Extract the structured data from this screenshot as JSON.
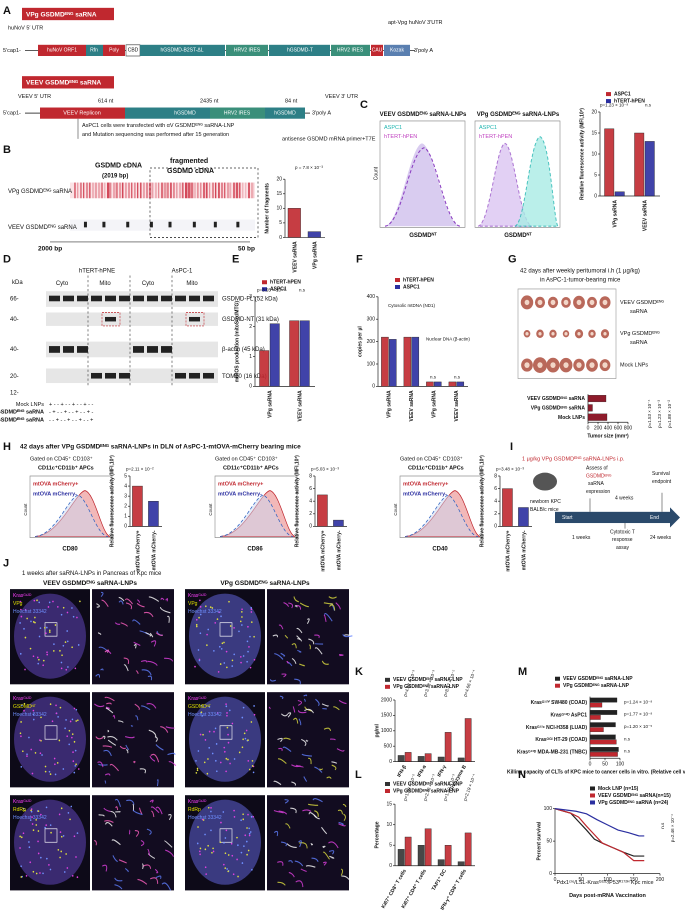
{
  "texts": [
    "A",
    "VPg GSDMDᴱᴺᴳ saRNA",
    "huNoV 5′ UTR",
    "apt-Vpg huNoV 3′UTR",
    "5′cap1-",
    "huNoV ORF1",
    "Rfn",
    "Poly",
    "CBD",
    "hGSDMD-B2ST-ΔL",
    "HRV2 IRES",
    "hGSDMD-T",
    "HRV2 IRES",
    "CAU",
    "Kozak",
    "3′poly A",
    "VEEV GSDMDᴱᴺᴳ saRNA",
    "VEEV 5′ UTR",
    "614 nt",
    "2435 nt",
    "84 nt",
    "VEEV 3′ UTR",
    "5′cap1-",
    "VEEV Replicon",
    "hGSDMD",
    "HRV2 IRES",
    "hGSDMD",
    "3′poly A",
    "AsPC1 cells were transfected with αV GSDMDᴱᴺᴳ saRNA-LNP",
    "and Mutation sequencing was performed after 15 generation",
    "antisense GSDMD mRNA primer+T7E",
    "B",
    "GSDMD cDNA",
    "(2019 bp)",
    "fragmented",
    "GSDMD cDNA",
    "VPg GSDMDᴱᴺᴳ saRNA",
    "VEEV GSDMDᴱᴺᴳ saRNA",
    "2000 bp",
    "50 bp",
    "C",
    "VEEV GSDMDᴱᴺᴳ saRNA-LNPs",
    "VPg GSDMDᴱᴺᴳ saRNA-LNPs",
    "ASPC1",
    "hTERT-hPEN",
    "ASPC1",
    "hTERT-hPEN",
    "Count",
    "GSDMDᴺᵀ",
    "GSDMDᴺᵀ",
    "D",
    "hTERT-hPNE",
    "AsPC-1",
    "Cyto",
    "Mito",
    "Cyto",
    "Mito",
    "kDa",
    "66-",
    "40-",
    "40-",
    "20-",
    "12-",
    "GSDMD-FL (52 kDa)",
    "GSDMD-NT (31 kDa)",
    "β-actin (45 kDa)",
    "TOM20 (16 kDa)",
    "Mock LNPs",
    "VEEV GSDMDᴱᴺᴳ saRNA",
    "VPg GSDMDᴱᴺᴳ saRNA",
    "+  -  -  +  -  -  +  -  -  +  -  -",
    "-  +  -  -  +  -  -  +  -  -  +  -",
    "-  -  +  -  -  +  -  -  +  -  -  +",
    "E",
    "F",
    "G",
    "42 days after weekly  peritumoral i.h (1 µg/kg)",
    "in AsPC-1-tumor-bearing mice",
    "VEEV GSDMDᴱᴺᴳ",
    "saRNA",
    "VPg GSDMDᴱᴺᴳ",
    "saRNA",
    "Mock LNPs",
    "H",
    "42 days after VPg GSDMDᴱᴺᴳ saRNA-LNPs in  DLN of AsPC-1-mtOVA-mCherry bearing mice",
    "Gated on CD45⁺ CD103⁺",
    "Gated on CD45⁺ CD103⁺",
    "Gated on CD45⁺ CD103⁺",
    "CD11c⁺CD11b⁺ APCs",
    "CD11c⁺CD11b⁺ APCs",
    "CD11c⁺CD11b⁺ APCs",
    "mtOVA mCherry+",
    "mtOVA mCherry-",
    "mtOVA mCherry+",
    "mtOVA mCherry-",
    "mtOVA mCherry+",
    "mtOVA mCherry-",
    "CD80",
    "CD86",
    "CD40",
    "Count",
    "Count",
    "Count",
    "I",
    "1 μg/kg VPg GSDMDᴱᴺᴳ saRNA-LNPs i.p.",
    "Assess of",
    "GSDMDᴱᴺᴳ",
    "saRNA",
    "expression",
    "4 weeks",
    "Survival",
    "endpoint",
    "newborn KPC",
    "BALB/c mice",
    "Start",
    "End",
    "1 weeks",
    "Cytotoxic T",
    "response",
    "assay",
    "24 weeks",
    "J",
    "1 weeks  after saRNA-LNPs in  Pancreas of Kpc mice",
    "VEEV GSDMDᴱᴺᴳ saRNA-LNPs",
    "VPg GSDMDᴱᴺᴳ saRNA-LNPs",
    "Krasᴳ¹²ᴰ",
    "VPg",
    "Hoechst 33342",
    "Krasᴳ¹²ᴰ",
    "GSDMDᴺᵀ",
    "Hoechst 33342",
    "Krasᴳ¹²ᴰ",
    "RdRp",
    "Hoechst 33342",
    "Krasᴳ¹²ᴰ",
    "VPg",
    "Hoechst 33342",
    "Krasᴳ¹²ᴰ",
    "GSDMDᴺᵀ",
    "Hoechst 33342",
    "Krasᴳ¹²ᴰ",
    "RdRp",
    "Hoechst 33342",
    "K",
    "L",
    "M",
    "N",
    "Pdx1ᶜʳᵉ/LSL-Krasᴳ¹²ᴰ/P53ᴿ¹⁷²ᴴ  Kpc mice"
  ],
  "chart_data": [
    {
      "type": "bar",
      "ylabel": "Number of fragments",
      "categories": [
        "VEEV saRNA",
        "VPg saRNA"
      ],
      "values": [
        10,
        2
      ],
      "colors": [
        "#c0282f",
        "#2b2fa0"
      ],
      "ylim": [
        0,
        20
      ],
      "yticks": [
        0,
        5,
        10,
        15,
        20
      ],
      "annotations": [
        "p = 7.8 × 10⁻³"
      ]
    },
    {
      "type": "bar",
      "ylabel": "Relative fluorescence activity (MFI,10³)",
      "categories": [
        "VPg saRNA",
        "VEEV saRNA"
      ],
      "series": [
        {
          "name": "ASPC1",
          "color": "#c0282f",
          "values": [
            16,
            15
          ]
        },
        {
          "name": "hTERT-hPEN",
          "color": "#2b2fa0",
          "values": [
            1,
            13
          ]
        }
      ],
      "ylim": [
        0,
        20
      ],
      "yticks": [
        0,
        5,
        10,
        15,
        20
      ],
      "annotations": [
        "p=1.23 × 10⁻⁸",
        "n.s"
      ]
    },
    {
      "type": "bar",
      "ylabel": "mtROS production (mitoSox/MTG)",
      "categories": [
        "VPg saRNA",
        "VEEV saRNA"
      ],
      "series": [
        {
          "name": "hTERT-hPEN",
          "color": "#c0282f",
          "values": [
            1.2,
            2.2
          ]
        },
        {
          "name": "ASPC1",
          "color": "#2b2fa0",
          "values": [
            2.1,
            2.2
          ]
        }
      ],
      "ylim": [
        0,
        3
      ],
      "yticks": [
        0,
        1,
        2,
        3
      ],
      "annotations": [
        "p=3.55 × 10⁻³",
        "n.s"
      ]
    },
    {
      "type": "bar",
      "ylabel": "copies per µl",
      "categories": [
        "VPg saRNA",
        "VEEV saRNA",
        "VPg saRNA",
        "VEEV saRNA"
      ],
      "series": [
        {
          "name": "hTERT-hPEN",
          "color": "#c0282f",
          "values": [
            220,
            220,
            20,
            20
          ]
        },
        {
          "name": "ASPC1",
          "color": "#2b2fa0",
          "values": [
            210,
            220,
            20,
            20
          ]
        }
      ],
      "ylim": [
        0,
        400
      ],
      "yticks": [
        0,
        100,
        200,
        300,
        400
      ],
      "annotations": [
        "Cytosolic mtDNA (ND1)",
        "Nuclear DNA (β-actin)",
        "n.s",
        "n.s"
      ]
    },
    {
      "type": "hbar",
      "xlabel": "Tumor size (mm³)",
      "categories": [
        "VEEV GSDMDᴱᴺᴳ saRNA",
        "VPg GSDMDᴱᴺᴳ saRNA",
        "Mock LNPs"
      ],
      "values": [
        360,
        90,
        380
      ],
      "colors": [
        "#8e1b2b",
        "#8e1b2b",
        "#8e1b2b"
      ],
      "xlim": [
        0,
        800
      ],
      "xticks": [
        0,
        200,
        400,
        600,
        800
      ],
      "annotations": [
        "p=1.53 × 10⁻⁴",
        "p=1.23 × 10⁻³",
        "p=1.88 × 10⁻²"
      ]
    },
    {
      "type": "bar",
      "ylabel": "Relative fluorescence activity (MFI,10³)",
      "categories": [
        "mtOVA mCherry+",
        "mtOVA mCherry-"
      ],
      "values": [
        4,
        2.5
      ],
      "colors": [
        "#c0282f",
        "#2b2fa0"
      ],
      "ylim": [
        0,
        5
      ],
      "yticks": [
        0,
        1,
        2,
        3,
        4,
        5
      ],
      "annotations": [
        "p=2.11 × 10⁻²"
      ]
    },
    {
      "type": "bar",
      "ylabel": "Relative fluorescence activity (MFI,10³)",
      "categories": [
        "mtOVA mCherry+",
        "mtOVA mCherry-"
      ],
      "values": [
        5,
        1
      ],
      "colors": [
        "#c0282f",
        "#2b2fa0"
      ],
      "ylim": [
        0,
        8
      ],
      "yticks": [
        0,
        2,
        4,
        6,
        8
      ],
      "annotations": [
        "p=5.03 × 10⁻³"
      ]
    },
    {
      "type": "bar",
      "ylabel": "Relative fluorescence activity (MFI,10³)",
      "categories": [
        "mtOVA mCherry+",
        "mtOVA mCherry-"
      ],
      "values": [
        6,
        3
      ],
      "colors": [
        "#c0282f",
        "#2b2fa0"
      ],
      "ylim": [
        0,
        8
      ],
      "yticks": [
        0,
        2,
        4,
        6,
        8
      ],
      "annotations": [
        "p=3.48 × 10⁻³"
      ]
    },
    {
      "type": "bar",
      "ylabel": "pg/ml",
      "categories": [
        "IFN-β",
        "IFN-α",
        "IFN-γ",
        "Granzyme B"
      ],
      "series": [
        {
          "name": "VEEV GSDMDᴱᴺᴳ saRNA-LNP",
          "color": "#333333",
          "values": [
            200,
            170,
            150,
            120
          ]
        },
        {
          "name": "VPg GSDMDᴱᴺᴳ saRNA-LNP",
          "color": "#c0282f",
          "values": [
            300,
            260,
            950,
            1400
          ]
        }
      ],
      "ylim": [
        0,
        2000
      ],
      "yticks": [
        0,
        500,
        1000,
        1500,
        2000
      ],
      "annotations": [
        "p=4.02 × 10⁻³",
        "p=3.18 × 10⁻³",
        "p=8.07 × 10⁻⁵",
        "p=4.66 × 10⁻⁴"
      ]
    },
    {
      "type": "bar",
      "ylabel": "Percentage",
      "categories": [
        "Ki67⁺ CD8⁺ T cells",
        "Ki67⁺ CD4⁺ T cells",
        "TAP1⁺ DC",
        "IFN-γ⁺ CD8⁺ T cells"
      ],
      "series": [
        {
          "name": "VEEV GSDMDᴱᴺᴳ saRNA-LNP",
          "color": "#333333",
          "values": [
            4,
            5,
            1.5,
            1
          ]
        },
        {
          "name": "VPg GSDMDᴱᴺᴳ saRNA-LNP",
          "color": "#c0282f",
          "values": [
            7,
            9,
            5,
            8
          ]
        }
      ],
      "ylim": [
        0,
        15
      ],
      "yticks": [
        0,
        5,
        10,
        15
      ],
      "annotations": [
        "p=1.09 × 10⁻²",
        "p=2.46 × 10⁻³",
        "p=1.30 × 10⁻³",
        "p=2.19 × 10⁻⁴"
      ]
    },
    {
      "type": "hbar",
      "xlabel": "Killing capacity of CLTs of KPC mice to cancer cells in vitro. (Relative cell viability)",
      "categories": [
        "Krasᴳ¹²ⱽ SW480 (COAD)",
        "Krasᴳ¹²ᴰ AsPC1",
        "Krasᴳ¹²ᶜ NCI-H358 (LUAD)",
        "Krasᴼᴳᴵ HT-29 (COAD)",
        "Krasᴳ¹³ᴰ MDA-MB-231 (TNBC)"
      ],
      "series": [
        {
          "name": "VEEV GSDMDᴱᴺᴳ saRNA-LNP",
          "color": "#222222",
          "values": [
            90,
            90,
            85,
            85,
            95
          ]
        },
        {
          "name": "VPg GSDMDᴱᴺᴳ saRNA-LNP",
          "color": "#c0282f",
          "values": [
            40,
            35,
            45,
            88,
            92
          ]
        }
      ],
      "xlim": [
        0,
        100
      ],
      "xticks": [
        0,
        50,
        100
      ],
      "annotations": [
        "p=1.24 × 10⁻⁸",
        "p=1.77 × 10⁻⁸",
        "p=1.20 × 10⁻⁵",
        "n.s",
        "n.s"
      ]
    },
    {
      "type": "line",
      "xlabel": "Days post-mRNA Vaccination",
      "ylabel": "Percent survival",
      "series": [
        {
          "name": "Mock LNP (n=15)",
          "color": "#222222",
          "x": [
            0,
            30,
            45,
            60,
            75,
            90,
            110,
            130,
            150,
            170
          ],
          "values": [
            100,
            93,
            80,
            67,
            53,
            47,
            40,
            33,
            27,
            27
          ]
        },
        {
          "name": "VEEV GSDMDᴱᴺᴳ saRNA(n=15)",
          "color": "#c0282f",
          "x": [
            0,
            30,
            45,
            60,
            75,
            90,
            110,
            130,
            150,
            170
          ],
          "values": [
            100,
            93,
            87,
            73,
            60,
            47,
            40,
            33,
            20,
            20
          ]
        },
        {
          "name": "VPg GSDMDᴱᴺᴳ saRNA (n=24)",
          "color": "#2b2fa0",
          "x": [
            0,
            40,
            60,
            80,
            100,
            120,
            140,
            160,
            170
          ],
          "values": [
            100,
            96,
            92,
            83,
            75,
            67,
            63,
            58,
            58
          ]
        }
      ],
      "xlim": [
        0,
        200
      ],
      "xticks": [
        0,
        50,
        100,
        150,
        200
      ],
      "ylim": [
        0,
        100
      ],
      "yticks": [
        0,
        50,
        100
      ],
      "annotations": [
        "n.s",
        "p=2.46 × 10⁻⁴"
      ]
    }
  ]
}
